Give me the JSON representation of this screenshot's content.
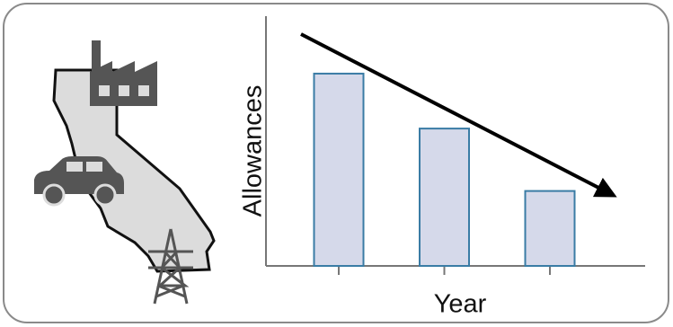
{
  "chart_data": {
    "type": "bar",
    "y_label": "Allowances",
    "x_label": "Year",
    "categories": [
      null,
      null,
      null
    ],
    "values": [
      77,
      55,
      30
    ],
    "color": "#d5d9ea",
    "edge_color": "#3a7ca5",
    "ylim": [
      0,
      100
    ]
  }
}
